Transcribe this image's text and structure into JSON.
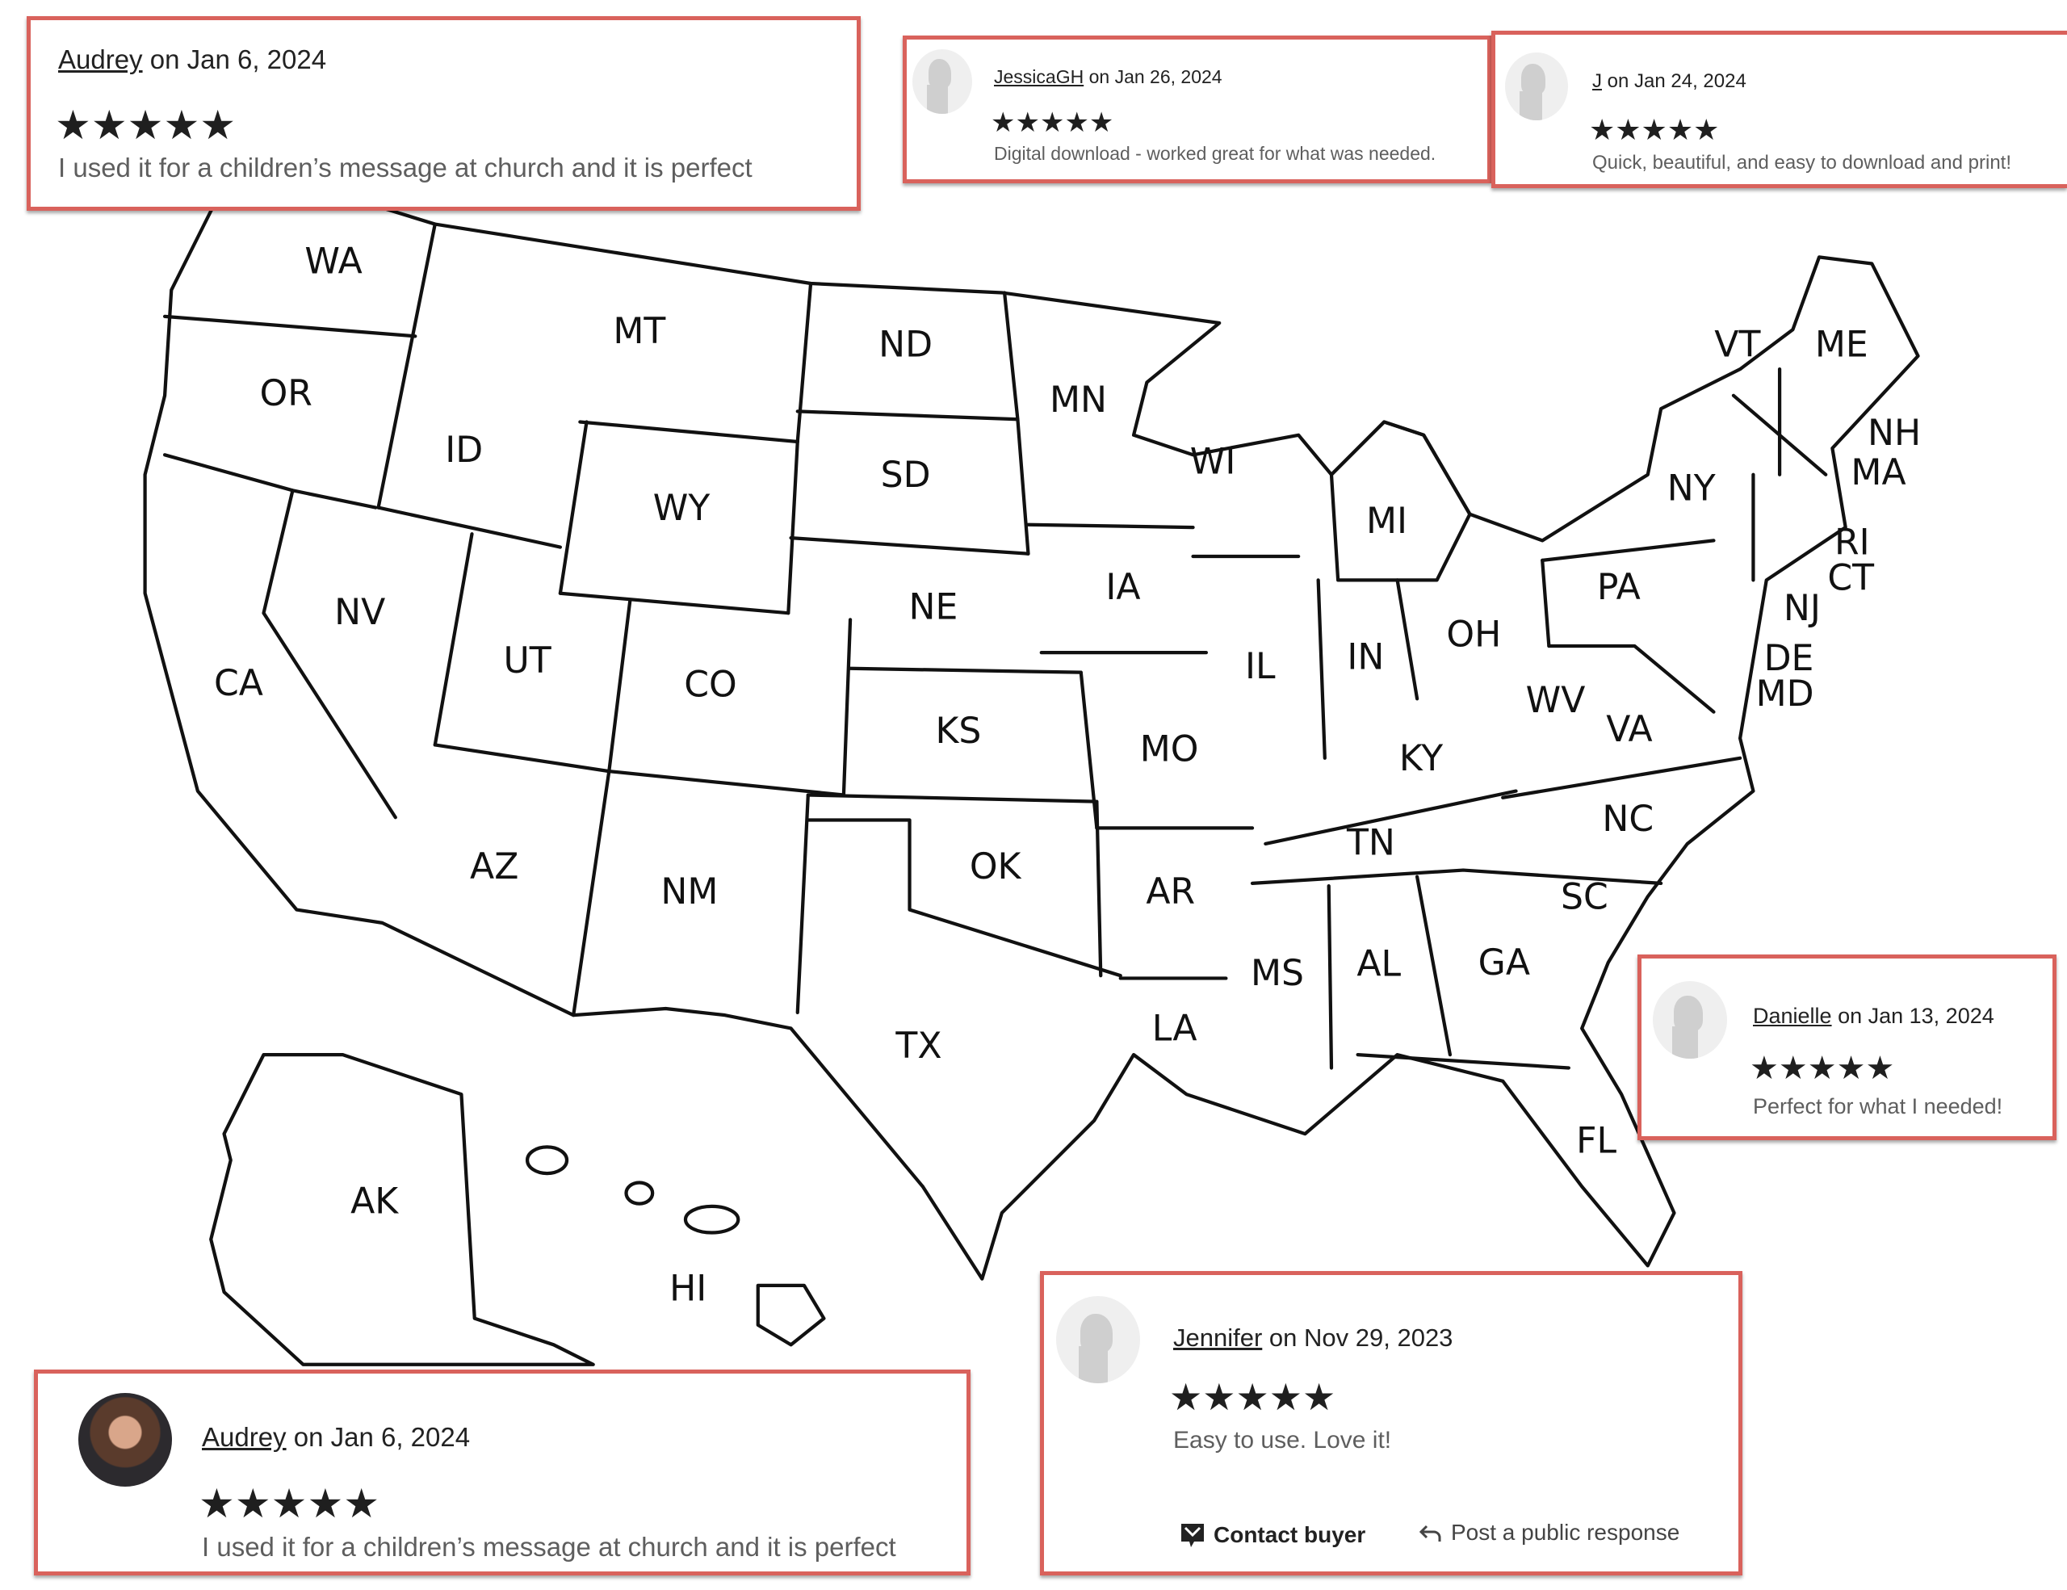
{
  "map": {
    "states": [
      "WA",
      "OR",
      "CA",
      "ID",
      "NV",
      "MT",
      "WY",
      "UT",
      "AZ",
      "CO",
      "NM",
      "ND",
      "SD",
      "NE",
      "KS",
      "OK",
      "TX",
      "MN",
      "IA",
      "MO",
      "AR",
      "LA",
      "WI",
      "IL",
      "MI",
      "IN",
      "OH",
      "KY",
      "TN",
      "MS",
      "AL",
      "GA",
      "FL",
      "SC",
      "NC",
      "VA",
      "WV",
      "PA",
      "NY",
      "VT",
      "ME",
      "NH",
      "MA",
      "RI",
      "CT",
      "NJ",
      "DE",
      "MD",
      "AK",
      "HI"
    ]
  },
  "colors": {
    "frame": "#d9625c",
    "stars": "#1f1f1f",
    "body_text": "#5e5e5e"
  },
  "reviews": [
    {
      "name": "Audrey",
      "date": "on Jan 6, 2024",
      "rating": 5,
      "stars": "★★★★★",
      "text": "I used it for a children’s message at church and it is perfect",
      "avatar": "none"
    },
    {
      "name": "JessicaGH",
      "date": "on Jan 26, 2024",
      "rating": 5,
      "stars": "★★★★★",
      "text": "Digital download - worked great for what was needed.",
      "avatar": "default-silhouette"
    },
    {
      "name": "J",
      "date": "on Jan 24, 2024",
      "rating": 5,
      "stars": "★★★★★",
      "text": "Quick, beautiful, and easy to download and print!",
      "avatar": "default-silhouette"
    },
    {
      "name": "Danielle",
      "date": "on Jan 13, 2024",
      "rating": 5,
      "stars": "★★★★★",
      "text": "Perfect for what I needed!",
      "avatar": "default-silhouette"
    },
    {
      "name": "Jennifer",
      "date": "on Nov 29, 2023",
      "rating": 5,
      "stars": "★★★★★",
      "text": "Easy to use. Love it!",
      "avatar": "default-silhouette",
      "actions": {
        "contact": "Contact buyer",
        "respond": "Post a public response"
      }
    },
    {
      "name": "Audrey",
      "date": "on Jan 6, 2024",
      "rating": 5,
      "stars": "★★★★★",
      "text": "I used it for a children’s message at church and it is perfect",
      "avatar": "photo"
    }
  ]
}
